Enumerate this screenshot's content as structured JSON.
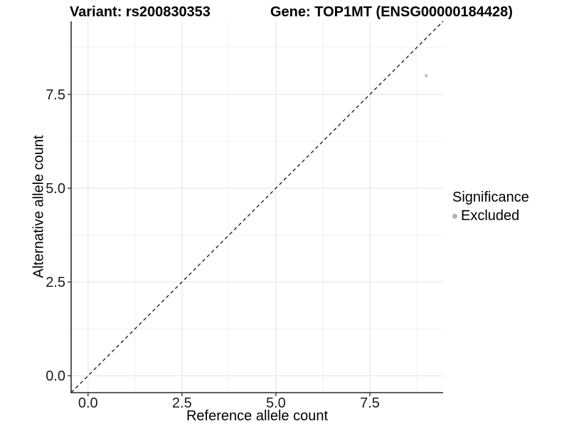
{
  "chart_data": {
    "type": "scatter",
    "titles": {
      "variant": "Variant: rs200830353",
      "gene": "Gene: TOP1MT (ENSG00000184428)"
    },
    "xlabel": "Reference allele count",
    "ylabel": "Alternative allele count",
    "xlim": [
      -0.45,
      9.45
    ],
    "ylim": [
      -0.45,
      9.45
    ],
    "x_ticks": [
      {
        "value": 0,
        "label": "0.0"
      },
      {
        "value": 2.5,
        "label": "2.5"
      },
      {
        "value": 5,
        "label": "5.0"
      },
      {
        "value": 7.5,
        "label": "7.5"
      }
    ],
    "y_ticks": [
      {
        "value": 0,
        "label": "0.0"
      },
      {
        "value": 2.5,
        "label": "2.5"
      },
      {
        "value": 5,
        "label": "5.0"
      },
      {
        "value": 7.5,
        "label": "7.5"
      }
    ],
    "x_minor": [
      1.25,
      3.75,
      6.25,
      8.75
    ],
    "y_minor": [
      1.25,
      3.75,
      6.25,
      8.75
    ],
    "grid": true,
    "series": [
      {
        "name": "Excluded",
        "color": "#c3c3c3",
        "point_radius": 2.3,
        "points": [
          {
            "x": 9,
            "y": 8
          }
        ]
      }
    ],
    "reference_line": {
      "kind": "identity",
      "equation": "y = x",
      "style": "dashed",
      "color": "#111111"
    },
    "legend": {
      "title": "Significance",
      "position": "right",
      "entries": [
        {
          "label": "Excluded",
          "color": "#b3b3b3"
        }
      ]
    },
    "style": {
      "background": "#ffffff",
      "grid_major_color": "#e3e3e3",
      "grid_minor_color": "#f1f1f1",
      "axis_line_color": "#2b2b2b",
      "tick_color": "#2b2b2b",
      "tick_label_color": "#1a1a1a",
      "title_color": "#000000"
    }
  }
}
